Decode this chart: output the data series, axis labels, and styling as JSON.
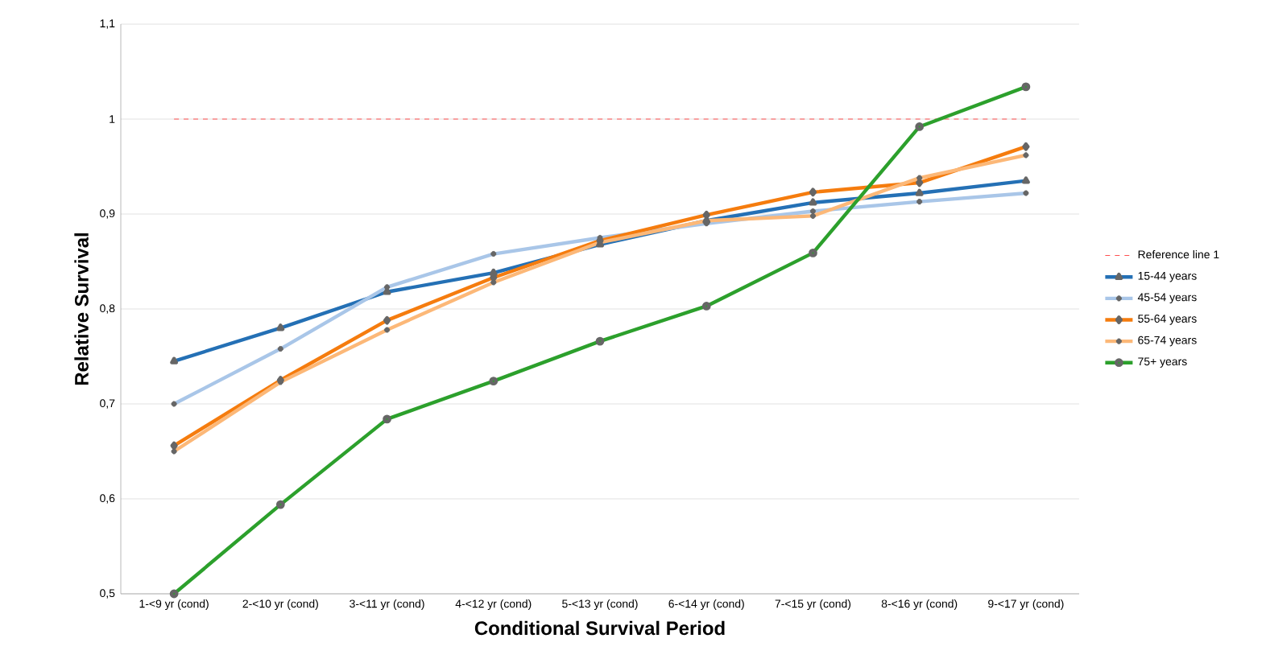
{
  "chart_data": {
    "type": "line",
    "xlabel": "Conditional Survival Period",
    "ylabel": "Relative Survival",
    "categories": [
      "1-<9 yr (cond)",
      "2-<10 yr (cond)",
      "3-<11 yr (cond)",
      "4-<12 yr (cond)",
      "5-<13 yr (cond)",
      "6-<14 yr (cond)",
      "7-<15 yr (cond)",
      "8-<16 yr (cond)",
      "9-<17 yr (cond)"
    ],
    "ylim": [
      0.5,
      1.1
    ],
    "yticks": [
      {
        "value": 0.5,
        "label": "0,5"
      },
      {
        "value": 0.6,
        "label": "0,6"
      },
      {
        "value": 0.7,
        "label": "0,7"
      },
      {
        "value": 0.8,
        "label": "0,8"
      },
      {
        "value": 0.9,
        "label": "0,9"
      },
      1,
      {
        "value": 1.1,
        "label": "1,1"
      }
    ],
    "grid": "y",
    "legend": "right",
    "ref_lines": [
      {
        "axis": "y",
        "value": 1,
        "label": "Reference line 1",
        "color": "#ff5050",
        "line_style": "dashed"
      }
    ],
    "series": [
      {
        "name": "15-44 years",
        "color": "#2470b5",
        "marker": "triangle",
        "values": [
          0.745,
          0.78,
          0.818,
          0.838,
          0.868,
          0.893,
          0.912,
          0.922,
          0.935
        ]
      },
      {
        "name": "45-54 years",
        "color": "#a9c6e8",
        "marker": "cross",
        "values": [
          0.7,
          0.758,
          0.823,
          0.858,
          0.875,
          0.89,
          0.903,
          0.913,
          0.922
        ]
      },
      {
        "name": "55-64 years",
        "color": "#f57c0e",
        "marker": "diamond",
        "values": [
          0.656,
          0.725,
          0.788,
          0.833,
          0.872,
          0.899,
          0.923,
          0.933,
          0.971
        ]
      },
      {
        "name": "65-74 years",
        "color": "#fcb878",
        "marker": "cross",
        "values": [
          0.65,
          0.723,
          0.778,
          0.828,
          0.87,
          0.893,
          0.898,
          0.938,
          0.962
        ]
      },
      {
        "name": "75+ years",
        "color": "#2ca02c",
        "marker": "circle",
        "values": [
          0.5,
          0.594,
          0.684,
          0.724,
          0.766,
          0.803,
          0.859,
          0.992,
          1.034
        ]
      }
    ]
  }
}
